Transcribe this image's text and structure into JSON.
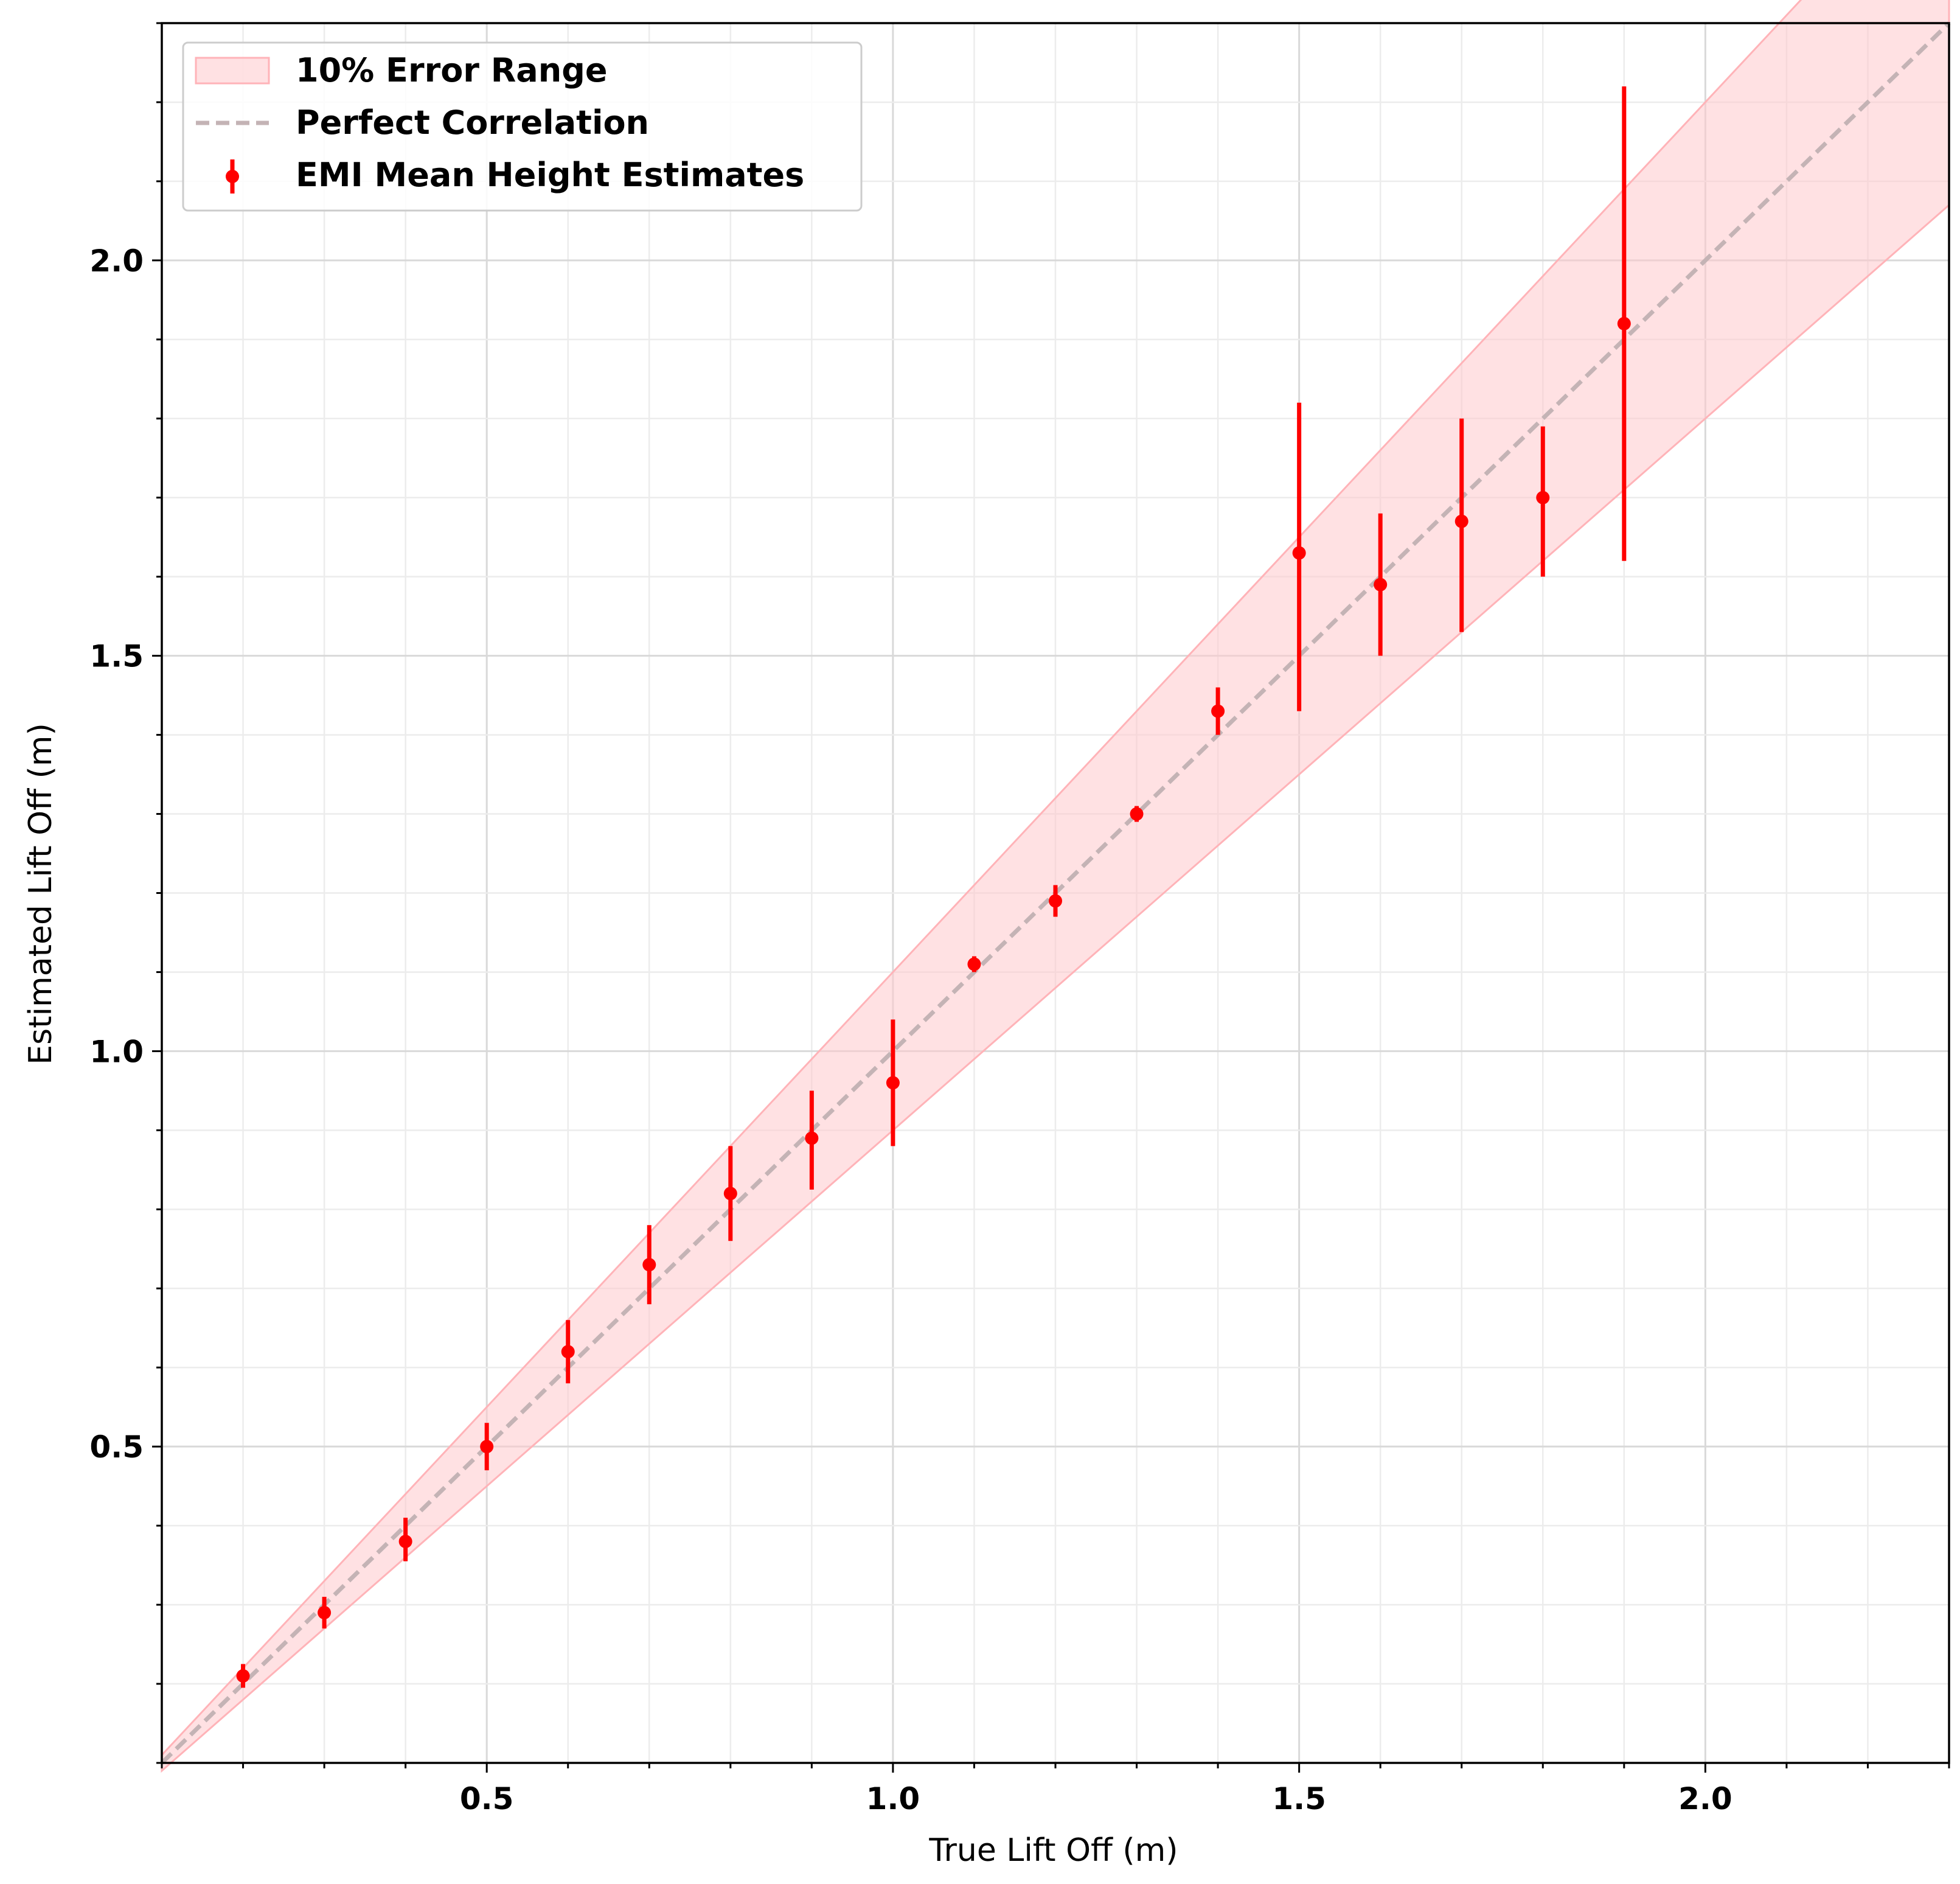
{
  "chart_data": {
    "type": "scatter",
    "xlabel": "True Lift Off (m)",
    "ylabel": "Estimated Lift Off (m)",
    "xlim": [
      0.1,
      2.3
    ],
    "ylim": [
      0.1,
      2.3
    ],
    "x_major_ticks": [
      0.5,
      1.0,
      1.5,
      2.0
    ],
    "y_major_ticks": [
      0.5,
      1.0,
      1.5,
      2.0
    ],
    "x_tick_labels": [
      "0.5",
      "1.0",
      "1.5",
      "2.0"
    ],
    "y_tick_labels": [
      "0.5",
      "1.0",
      "1.5",
      "2.0"
    ],
    "minor_step": 0.1,
    "grid": true,
    "legend_position": "top-left",
    "error_band": {
      "name": "10% Error Range",
      "fraction": 0.1,
      "color": "#ffc9cc"
    },
    "reference_line": {
      "name": "Perfect Correlation",
      "slope": 1,
      "color": "#c4b3b5"
    },
    "series": [
      {
        "name": "EMI Mean Height Estimates",
        "color": "#ff0000",
        "x": [
          0.2,
          0.3,
          0.4,
          0.5,
          0.6,
          0.7,
          0.8,
          0.9,
          1.0,
          1.1,
          1.2,
          1.3,
          1.4,
          1.5,
          1.6,
          1.7,
          1.8,
          1.9
        ],
        "y": [
          0.21,
          0.29,
          0.38,
          0.5,
          0.62,
          0.73,
          0.82,
          0.89,
          0.96,
          1.11,
          1.19,
          1.3,
          1.43,
          1.63,
          1.59,
          1.67,
          1.7,
          1.92
        ],
        "y_lower": [
          0.195,
          0.27,
          0.355,
          0.47,
          0.58,
          0.68,
          0.76,
          0.825,
          0.88,
          1.1,
          1.17,
          1.29,
          1.4,
          1.43,
          1.5,
          1.53,
          1.6,
          1.62
        ],
        "y_upper": [
          0.225,
          0.31,
          0.41,
          0.53,
          0.66,
          0.78,
          0.88,
          0.95,
          1.04,
          1.12,
          1.21,
          1.31,
          1.46,
          1.82,
          1.68,
          1.8,
          1.79,
          2.22
        ]
      }
    ]
  },
  "legend": {
    "band_label": "10% Error Range",
    "line_label": "Perfect Correlation",
    "points_label": "EMI Mean Height Estimates"
  }
}
